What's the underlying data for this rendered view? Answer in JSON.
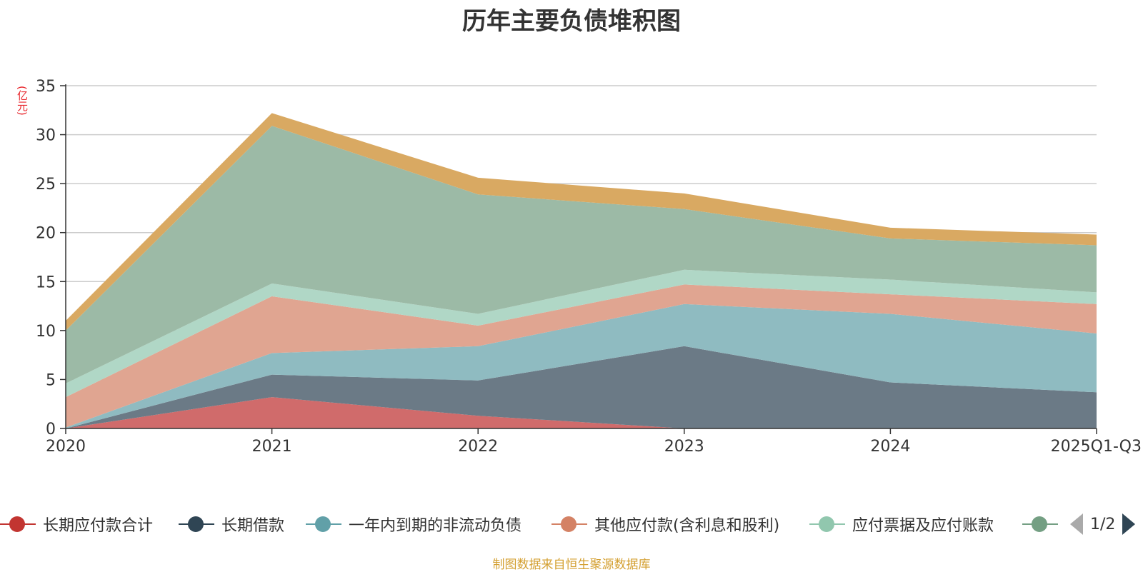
{
  "chart_data": {
    "type": "area",
    "stacked": true,
    "title": "历年主要负债堆积图",
    "ylabel": "(亿元)",
    "ylim": [
      0,
      35
    ],
    "yticks": [
      0,
      5,
      10,
      15,
      20,
      25,
      30,
      35
    ],
    "categories": [
      "2020",
      "2021",
      "2022",
      "2023",
      "2024",
      "2025Q1-Q3"
    ],
    "series": [
      {
        "name": "长期应付款合计",
        "color": "#d06b6b",
        "legend_color": "#c23531",
        "values": [
          0,
          3.2,
          1.3,
          0,
          0,
          0
        ]
      },
      {
        "name": "长期借款",
        "color": "#6b7a86",
        "legend_color": "#2f4554",
        "values": [
          0,
          2.3,
          3.6,
          8.4,
          4.7,
          3.7
        ]
      },
      {
        "name": "一年内到期的非流动负债",
        "color": "#8fbbc1",
        "legend_color": "#61a0a8",
        "values": [
          0.1,
          2.2,
          3.5,
          4.3,
          7.0,
          6.0
        ]
      },
      {
        "name": "其他应付款(含利息和股利)",
        "color": "#e0a591",
        "legend_color": "#d48265",
        "values": [
          3.1,
          5.8,
          2.1,
          2.0,
          2.0,
          3.0
        ]
      },
      {
        "name": "应付票据及应付账款",
        "color": "#b0d7c6",
        "legend_color": "#91c7ae",
        "values": [
          1.4,
          1.3,
          1.2,
          1.5,
          1.5,
          1.2
        ]
      },
      {
        "name": "",
        "color": "#9cbaa6",
        "legend_color": "#749f83",
        "values": [
          5.4,
          16.1,
          12.2,
          6.2,
          4.2,
          4.8
        ]
      },
      {
        "name": "",
        "color": "#d9a962",
        "legend_color": "#ca8622",
        "values": [
          1.0,
          1.3,
          1.7,
          1.6,
          1.1,
          1.1
        ]
      }
    ]
  },
  "legend": {
    "items": [
      {
        "label": "长期应付款合计",
        "color": "#c23531"
      },
      {
        "label": "长期借款",
        "color": "#2f4554"
      },
      {
        "label": "一年内到期的非流动负债",
        "color": "#61a0a8"
      },
      {
        "label": "其他应付款(含利息和股利)",
        "color": "#d48265"
      },
      {
        "label": "应付票据及应付账款",
        "color": "#91c7ae"
      },
      {
        "label": "",
        "color": "#749f83"
      }
    ],
    "page": "1/2"
  },
  "source": "制图数据来自恒生聚源数据库"
}
